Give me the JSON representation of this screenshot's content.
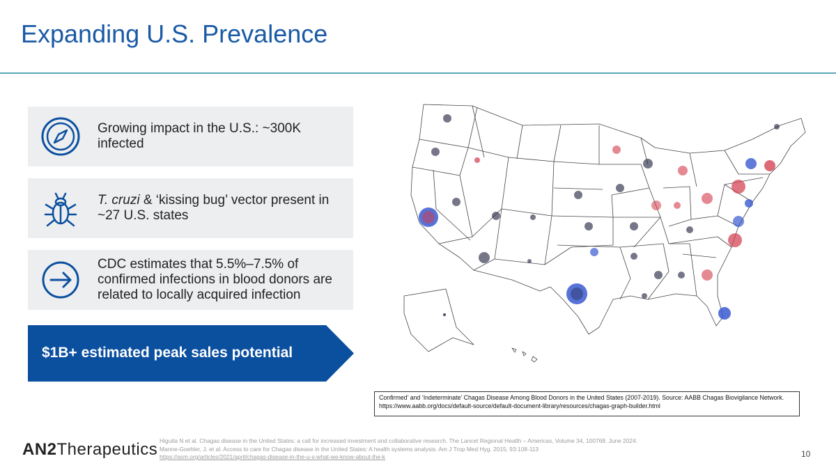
{
  "slide": {
    "title": "Expanding U.S. Prevalence",
    "page_number": "10"
  },
  "cards": [
    {
      "icon": "compass-icon",
      "text": "Growing impact in the U.S.: ~300K infected"
    },
    {
      "icon": "bug-icon",
      "text_italic": "T. cruzi",
      "text_rest": " & ‘kissing bug’ vector present in ~27 U.S. states"
    },
    {
      "icon": "arrow-right-circle-icon",
      "text": "CDC estimates that 5.5%–7.5% of confirmed infections in blood donors are related to locally acquired infection"
    }
  ],
  "banner": {
    "text": "$1B+ estimated peak sales potential"
  },
  "map": {
    "caption": "Confirmed’ and ‘Indeterminate’ Chagas Disease Among Blood Donors in the United States (2007-2019). Source: AABB Chagas Biovigilance Network. https://www.aabb.org/docs/default-source/default-document-library/resources/chagas-graph-builder.html"
  },
  "footer": {
    "logo_an": "AN2",
    "logo_rest": "Therapeutics",
    "ref1": "Higuita N et al. Chagas disease in the United States: a call for increased investment and collaborative research. The Lancet Regional Health – Americas, Volume 34, 100768. June 2024.",
    "ref2": "Manne-Goehler, J. et al. Access to care for Chagas disease in the United States: A health systems analysis. Am J Trop Med Hyg. 2015; 93:108-113",
    "ref3": "https://asm.org/articles/2021/april/chagas-disease-in-the-u-s-what-we-know-about-the-k"
  },
  "colors": {
    "title": "#1a5aa6",
    "accent_blue": "#0b4f9f",
    "card_bg": "#edeef0",
    "dot_dark": "#1b1b3a",
    "dot_red": "#d23a4a",
    "dot_blue": "#3a5ad0"
  }
}
